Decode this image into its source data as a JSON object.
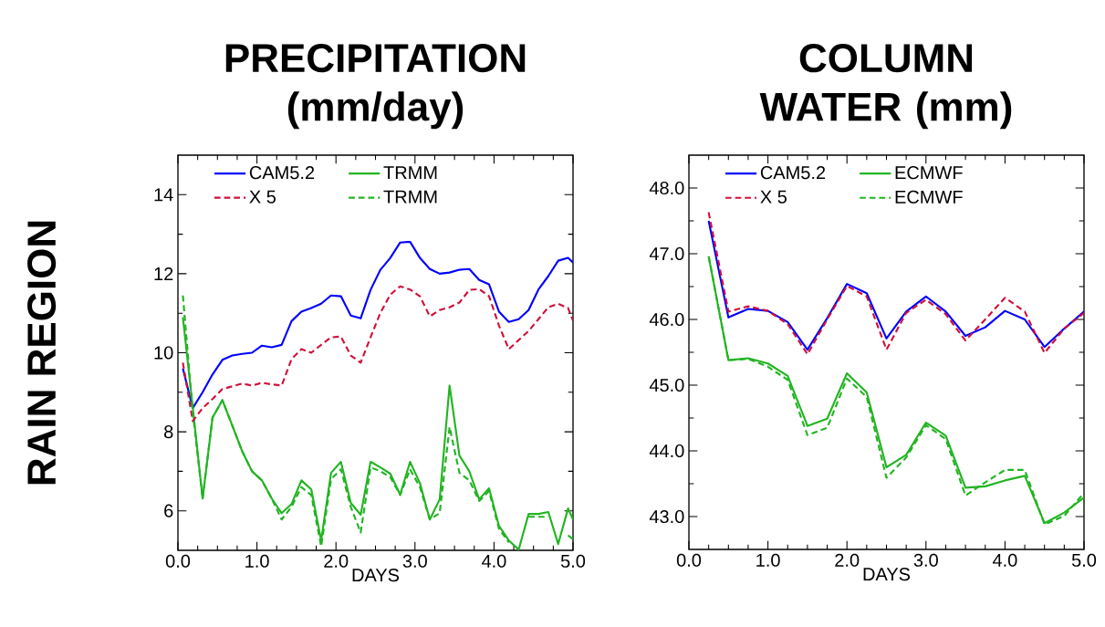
{
  "chart_data": [
    {
      "type": "line",
      "title": "PRECIPITATION (mm/day)",
      "xlabel": "DAYS",
      "ylabel": "RAIN REGION",
      "x": [
        0.0625,
        0.1875,
        0.3125,
        0.4375,
        0.5625,
        0.6875,
        0.8125,
        0.9375,
        1.0625,
        1.1875,
        1.3125,
        1.4375,
        1.5625,
        1.6875,
        1.8125,
        1.9375,
        2.0625,
        2.1875,
        2.3125,
        2.4375,
        2.5625,
        2.6875,
        2.8125,
        2.9375,
        3.0625,
        3.1875,
        3.3125,
        3.4375,
        3.5625,
        3.6875,
        3.8125,
        3.9375,
        4.0625,
        4.1875,
        4.3125,
        4.4375,
        4.5625,
        4.6875,
        4.8125,
        4.9375,
        5.0
      ],
      "series": [
        {
          "name": "CAM5.2",
          "color": "#0000ff",
          "line_style": "solid",
          "values": [
            9.6,
            8.6,
            9.0,
            9.45,
            9.82,
            9.93,
            9.97,
            10.0,
            10.18,
            10.14,
            10.2,
            10.8,
            11.04,
            11.13,
            11.24,
            11.45,
            11.43,
            10.94,
            10.87,
            11.59,
            12.1,
            12.4,
            12.79,
            12.81,
            12.4,
            12.12,
            12.0,
            12.03,
            12.1,
            12.12,
            11.84,
            11.73,
            11.04,
            10.78,
            10.85,
            11.08,
            11.6,
            11.94,
            12.33,
            12.4,
            12.28
          ]
        },
        {
          "name": "X 5",
          "color": "#d0103a",
          "line_style": "dashed",
          "values": [
            9.75,
            8.27,
            8.6,
            8.83,
            9.08,
            9.15,
            9.22,
            9.17,
            9.24,
            9.2,
            9.17,
            9.84,
            10.09,
            10.0,
            10.2,
            10.39,
            10.41,
            9.93,
            9.75,
            10.39,
            11.01,
            11.47,
            11.68,
            11.6,
            11.43,
            10.92,
            11.08,
            11.15,
            11.27,
            11.59,
            11.61,
            11.43,
            10.69,
            10.09,
            10.32,
            10.55,
            10.85,
            11.15,
            11.24,
            11.13,
            10.81
          ]
        },
        {
          "name": "TRMM",
          "color": "#22b422",
          "line_style": "solid",
          "values": [
            10.9,
            8.62,
            6.31,
            8.36,
            8.8,
            8.16,
            7.51,
            7.0,
            6.77,
            6.31,
            5.94,
            6.17,
            6.77,
            6.54,
            5.25,
            6.96,
            7.24,
            6.2,
            5.9,
            7.24,
            7.1,
            6.94,
            6.41,
            7.24,
            6.7,
            5.78,
            6.29,
            9.17,
            7.4,
            7.0,
            6.29,
            6.57,
            5.62,
            5.25,
            5.02,
            5.92,
            5.92,
            5.97,
            5.16,
            6.06,
            5.78
          ]
        },
        {
          "name": "TRMM",
          "color": "#22b422",
          "line_style": "dashed",
          "values": [
            11.45,
            8.5,
            6.31,
            8.36,
            8.8,
            8.16,
            7.51,
            7.0,
            6.77,
            6.31,
            5.78,
            6.1,
            6.6,
            6.4,
            5.1,
            6.8,
            7.05,
            6.1,
            5.45,
            7.1,
            7.0,
            6.85,
            6.4,
            7.05,
            6.6,
            5.78,
            5.94,
            8.12,
            6.96,
            6.77,
            6.25,
            6.5,
            5.55,
            5.2,
            null,
            5.85,
            5.85,
            5.85,
            null,
            5.38,
            5.28
          ]
        }
      ],
      "xlim": [
        0,
        5
      ],
      "ylim": [
        5,
        15
      ],
      "xticks": [
        {
          "value": 0,
          "label": "0.0"
        },
        {
          "value": 1,
          "label": "1.0"
        },
        {
          "value": 2,
          "label": "2.0"
        },
        {
          "value": 3,
          "label": "3.0"
        },
        {
          "value": 4,
          "label": "4.0"
        },
        {
          "value": 5,
          "label": "5.0"
        }
      ],
      "yticks": [
        6,
        8,
        10,
        12,
        14
      ],
      "legend": "top left",
      "grid": false,
      "marker": "none"
    },
    {
      "type": "line",
      "title": "COLUMN WATER (mm)",
      "xlabel": "DAYS",
      "x": [
        0.25,
        0.5,
        0.75,
        1.0,
        1.25,
        1.5,
        1.75,
        2.0,
        2.25,
        2.5,
        2.75,
        3.0,
        3.25,
        3.5,
        3.75,
        4.0,
        4.25,
        4.5,
        4.75,
        5.0
      ],
      "series": [
        {
          "name": "CAM5.2",
          "color": "#0000ff",
          "line_style": "solid",
          "values": [
            47.5,
            46.03,
            46.16,
            46.13,
            45.96,
            45.54,
            46.02,
            46.54,
            46.4,
            45.71,
            46.12,
            46.35,
            46.12,
            45.75,
            45.88,
            46.13,
            46.0,
            45.58,
            45.86,
            46.12
          ]
        },
        {
          "name": "X 5",
          "color": "#d0103a",
          "line_style": "dashed",
          "values": [
            47.63,
            46.12,
            46.2,
            46.13,
            45.93,
            45.47,
            46.0,
            46.51,
            46.35,
            45.54,
            46.1,
            46.3,
            46.08,
            45.68,
            46.0,
            46.33,
            46.12,
            45.49,
            45.86,
            46.1
          ]
        },
        {
          "name": "ECMWF",
          "color": "#22b422",
          "line_style": "solid",
          "values": [
            46.96,
            45.38,
            45.41,
            45.33,
            45.14,
            44.38,
            44.49,
            45.18,
            44.89,
            43.75,
            43.94,
            44.43,
            44.23,
            43.44,
            43.46,
            43.55,
            43.62,
            42.9,
            43.06,
            43.29
          ]
        },
        {
          "name": "ECMWF",
          "color": "#22b422",
          "line_style": "dashed",
          "values": [
            46.96,
            45.38,
            45.4,
            45.28,
            45.08,
            44.24,
            44.35,
            45.1,
            44.82,
            43.59,
            43.9,
            44.39,
            44.18,
            43.32,
            43.52,
            43.71,
            43.71,
            42.88,
            43.01,
            43.36
          ]
        }
      ],
      "xlim": [
        0,
        5
      ],
      "ylim": [
        42.5,
        48.5
      ],
      "xticks": [
        {
          "value": 0,
          "label": "0.0"
        },
        {
          "value": 1,
          "label": "1.0"
        },
        {
          "value": 2,
          "label": "2.0"
        },
        {
          "value": 3,
          "label": "3.0"
        },
        {
          "value": 4,
          "label": "4.0"
        },
        {
          "value": 5,
          "label": "5.0"
        }
      ],
      "yticks": [
        {
          "value": 43,
          "label": "43.0"
        },
        {
          "value": 44,
          "label": "44.0"
        },
        {
          "value": 45,
          "label": "45.0"
        },
        {
          "value": 46,
          "label": "46.0"
        },
        {
          "value": 47,
          "label": "47.0"
        },
        {
          "value": 48,
          "label": "48.0"
        }
      ],
      "legend": "top left",
      "grid": false,
      "marker": "none"
    }
  ]
}
